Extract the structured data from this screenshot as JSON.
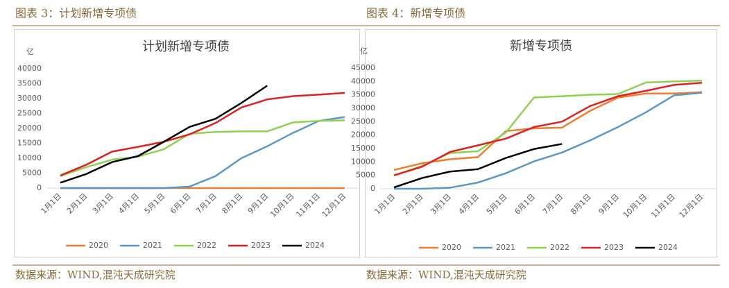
{
  "captions": [
    "图表 3：计划新增专项债",
    "图表 4：新增专项债"
  ],
  "sources": [
    "数据来源：WIND,混沌天成研究院",
    "数据来源：WIND,混沌天成研究院"
  ],
  "chart_data": [
    {
      "type": "line",
      "title": "计划新增专项债",
      "y_label": "亿",
      "categories": [
        "1月1日",
        "2月1日",
        "3月1日",
        "4月1日",
        "5月1日",
        "6月1日",
        "7月1日",
        "8月1日",
        "9月1日",
        "10月1日",
        "11月1日",
        "12月1日"
      ],
      "ylim": [
        0,
        40000
      ],
      "yticks": [
        0,
        5000,
        10000,
        15000,
        20000,
        25000,
        30000,
        35000,
        40000
      ],
      "series": [
        {
          "name": "2020",
          "color": "#ed7d31",
          "values": [
            0,
            0,
            0,
            0,
            0,
            0,
            0,
            0,
            0,
            0,
            0,
            0
          ]
        },
        {
          "name": "2021",
          "color": "#5b97c4",
          "values": [
            0,
            0,
            0,
            0,
            0,
            500,
            4000,
            10000,
            14000,
            18500,
            22500,
            23800
          ]
        },
        {
          "name": "2022",
          "color": "#8fd14f",
          "values": [
            4000,
            7000,
            9500,
            10500,
            13000,
            18200,
            18800,
            19000,
            19000,
            22000,
            22500,
            22700
          ]
        },
        {
          "name": "2023",
          "color": "#e02020",
          "values": [
            4200,
            7800,
            12200,
            13800,
            15500,
            18000,
            21800,
            27000,
            29700,
            30800,
            31300,
            31900
          ]
        },
        {
          "name": "2024",
          "color": "#000000",
          "values": [
            1800,
            4700,
            8700,
            10700,
            15500,
            20500,
            23200,
            28500,
            34300,
            null,
            null,
            null
          ]
        }
      ]
    },
    {
      "type": "line",
      "title": "新增专项债",
      "y_label": "亿",
      "categories": [
        "1月1日",
        "2月1日",
        "3月1日",
        "4月1日",
        "5月1日",
        "6月1日",
        "7月1日",
        "8月1日",
        "9月1日",
        "10月1日",
        "11月1日",
        "12月1日"
      ],
      "ylim": [
        0,
        45000
      ],
      "yticks": [
        0,
        5000,
        10000,
        15000,
        20000,
        25000,
        30000,
        35000,
        40000,
        45000
      ],
      "series": [
        {
          "name": "2020",
          "color": "#ed7d31",
          "values": [
            7000,
            9500,
            11000,
            11800,
            21500,
            22500,
            22800,
            29000,
            34000,
            35500,
            35500,
            36000
          ]
        },
        {
          "name": "2021",
          "color": "#5b97c4",
          "values": [
            0,
            0,
            400,
            2300,
            5800,
            10200,
            13500,
            18000,
            23000,
            28500,
            34800,
            35800
          ]
        },
        {
          "name": "2022",
          "color": "#8fd14f",
          "values": [
            5000,
            8500,
            13300,
            14000,
            21000,
            34000,
            34500,
            35000,
            35300,
            39600,
            40000,
            40300
          ]
        },
        {
          "name": "2023",
          "color": "#e02020",
          "values": [
            5000,
            8200,
            13700,
            16200,
            18700,
            23000,
            25000,
            30800,
            34500,
            36500,
            38700,
            39500
          ]
        },
        {
          "name": "2024",
          "color": "#000000",
          "values": [
            500,
            4000,
            6400,
            7300,
            11500,
            14800,
            16700,
            null,
            null,
            null,
            null,
            null
          ]
        }
      ]
    }
  ]
}
